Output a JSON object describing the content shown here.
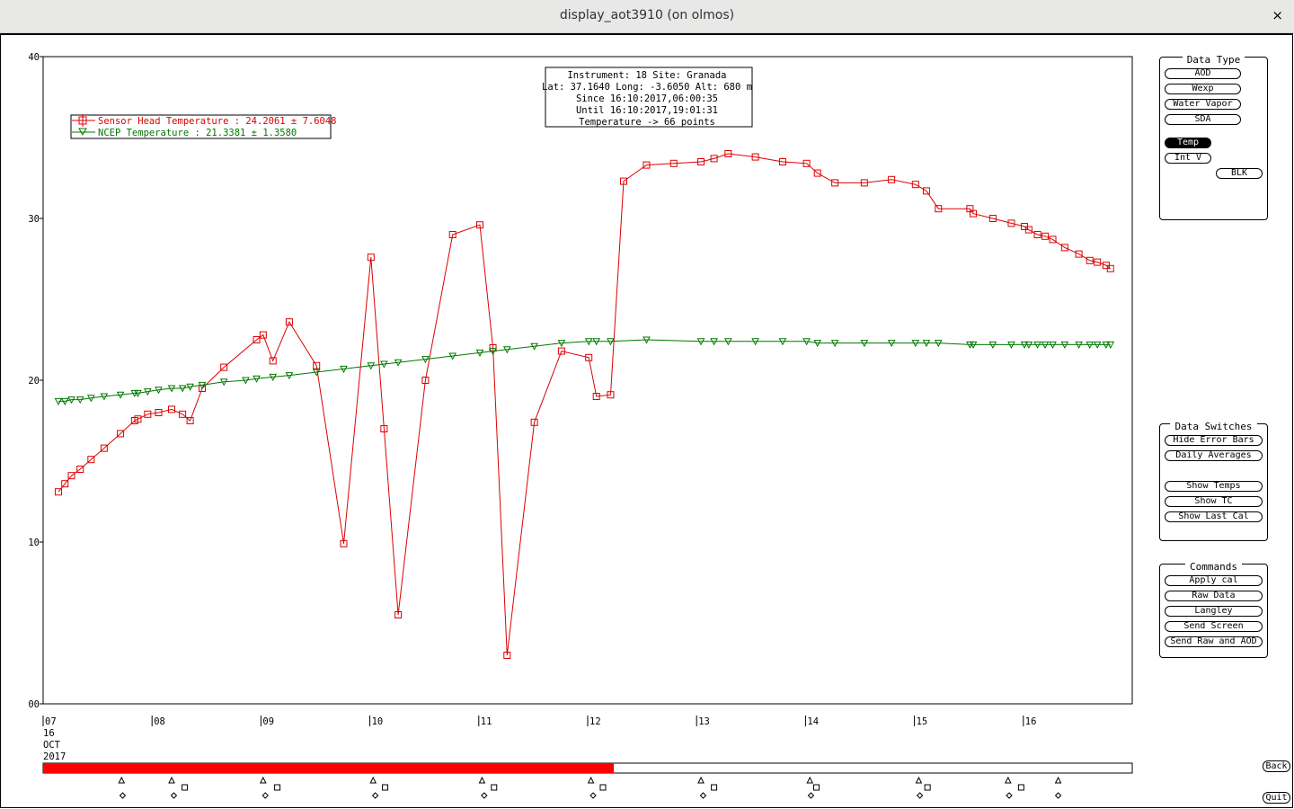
{
  "window": {
    "title": "display_aot3910 (on olmos)",
    "close_glyph": "×"
  },
  "chart_data": {
    "type": "line",
    "ylim": [
      0,
      40
    ],
    "y_ticks": [
      "00",
      "10",
      "20",
      "30",
      "40"
    ],
    "x_ticks": [
      "07",
      "08",
      "09",
      "10",
      "11",
      "12",
      "13",
      "14",
      "15",
      "16"
    ],
    "x_first_extra": [
      "16",
      "OCT",
      "2017"
    ],
    "xlim": [
      7.0,
      17.0
    ],
    "info_box": [
      "Instrument: 18 Site: Granada",
      "Lat: 37.1640 Long: -3.6050 Alt: 680 m",
      "Since 16:10:2017,06:00:35",
      "Until 16:10:2017,19:01:31",
      "Temperature -> 66 points"
    ],
    "series": [
      {
        "name": "Sensor Head Temperature : 24.2061 ± 7.6048",
        "color": "#dd0000",
        "marker": "square",
        "x": [
          7.14,
          7.2,
          7.26,
          7.34,
          7.44,
          7.56,
          7.71,
          7.84,
          7.87,
          7.96,
          8.06,
          8.18,
          8.28,
          8.35,
          8.46,
          8.66,
          8.96,
          9.02,
          9.11,
          9.26,
          9.51,
          9.76,
          10.01,
          10.13,
          10.26,
          10.51,
          10.76,
          11.01,
          11.13,
          11.26,
          11.51,
          11.76,
          12.01,
          12.08,
          12.21,
          12.33,
          12.54,
          12.79,
          13.04,
          13.16,
          13.29,
          13.54,
          13.79,
          14.01,
          14.11,
          14.27,
          14.54,
          14.79,
          15.01,
          15.11,
          15.22,
          15.51,
          15.54,
          15.72,
          15.89,
          16.01,
          16.05,
          16.13,
          16.2,
          16.27,
          16.38,
          16.51,
          16.61,
          16.68,
          16.76,
          16.8
        ],
        "y": [
          13.1,
          13.6,
          14.1,
          14.5,
          15.1,
          15.8,
          16.7,
          17.5,
          17.6,
          17.9,
          18.0,
          18.2,
          17.9,
          17.5,
          19.5,
          20.8,
          22.5,
          22.8,
          21.2,
          23.6,
          20.9,
          9.9,
          27.6,
          17.0,
          5.5,
          20.0,
          29.0,
          29.6,
          22.0,
          3.0,
          17.4,
          21.8,
          21.4,
          19.0,
          19.1,
          32.3,
          33.3,
          33.4,
          33.5,
          33.7,
          34.0,
          33.8,
          33.5,
          33.4,
          32.8,
          32.2,
          32.2,
          32.4,
          32.1,
          31.7,
          30.6,
          30.6,
          30.3,
          30.0,
          29.7,
          29.5,
          29.3,
          29.0,
          28.9,
          28.7,
          28.2,
          27.8,
          27.4,
          27.3,
          27.1,
          26.9
        ]
      },
      {
        "name": "NCEP Temperature : 21.3381 ± 1.3580",
        "color": "#007700",
        "marker": "triangle-down",
        "x": [
          7.14,
          7.2,
          7.26,
          7.34,
          7.44,
          7.56,
          7.71,
          7.84,
          7.87,
          7.96,
          8.06,
          8.18,
          8.28,
          8.35,
          8.46,
          8.66,
          8.86,
          8.96,
          9.11,
          9.26,
          9.51,
          9.76,
          10.01,
          10.13,
          10.26,
          10.51,
          10.76,
          11.01,
          11.13,
          11.26,
          11.51,
          11.76,
          12.01,
          12.08,
          12.21,
          12.54,
          13.04,
          13.16,
          13.29,
          13.54,
          13.79,
          14.01,
          14.11,
          14.27,
          14.54,
          14.79,
          15.01,
          15.11,
          15.22,
          15.51,
          15.54,
          15.72,
          15.89,
          16.01,
          16.05,
          16.13,
          16.2,
          16.27,
          16.38,
          16.51,
          16.61,
          16.68,
          16.76,
          16.8
        ],
        "y": [
          18.7,
          18.7,
          18.8,
          18.8,
          18.9,
          19.0,
          19.1,
          19.2,
          19.2,
          19.3,
          19.4,
          19.5,
          19.5,
          19.6,
          19.7,
          19.9,
          20.0,
          20.1,
          20.2,
          20.3,
          20.5,
          20.7,
          20.9,
          21.0,
          21.1,
          21.3,
          21.5,
          21.7,
          21.8,
          21.9,
          22.1,
          22.3,
          22.4,
          22.4,
          22.4,
          22.5,
          22.4,
          22.4,
          22.4,
          22.4,
          22.4,
          22.4,
          22.3,
          22.3,
          22.3,
          22.3,
          22.3,
          22.3,
          22.3,
          22.2,
          22.2,
          22.2,
          22.2,
          22.2,
          22.2,
          22.2,
          22.2,
          22.2,
          22.2,
          22.2,
          22.2,
          22.2,
          22.2,
          22.2
        ]
      }
    ]
  },
  "timeline": {
    "progress_fraction": 0.524,
    "triangle_days": [
      7.72,
      8.18,
      9.02,
      10.03,
      11.03,
      12.03,
      13.04,
      14.04,
      15.04,
      15.86,
      16.32
    ],
    "diamond_days": [
      7.73,
      8.2,
      9.04,
      10.05,
      11.05,
      12.05,
      13.06,
      14.05,
      15.05,
      15.87,
      16.32
    ],
    "square_days": [
      8.3,
      9.15,
      10.14,
      11.14,
      12.14,
      13.16,
      14.1,
      15.12,
      15.98
    ]
  },
  "data_type": {
    "title": "Data Type",
    "buttons": [
      "AOD",
      "Wexp",
      "Water Vapor",
      "SDA"
    ],
    "temp": "Temp",
    "int_v": "Int V",
    "blk": "BLK"
  },
  "data_switches": {
    "title": "Data Switches",
    "buttons": [
      "Hide Error Bars",
      "Daily Averages",
      "Show Temps",
      "Show TC",
      "Show Last Cal"
    ]
  },
  "commands": {
    "title": "Commands",
    "buttons": [
      "Apply cal",
      "Raw Data",
      "Langley",
      "Send Screen",
      "Send Raw and AOD"
    ]
  },
  "nav": {
    "back": "Back",
    "quit": "Quit"
  }
}
